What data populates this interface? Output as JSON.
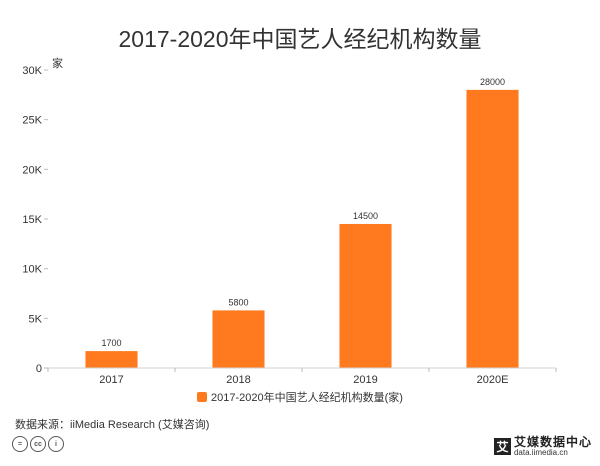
{
  "chart_data": {
    "type": "bar",
    "title": "2017-2020年中国艺人经纪机构数量",
    "ylabel": "家",
    "categories": [
      "2017",
      "2018",
      "2019",
      "2020E"
    ],
    "series": [
      {
        "name": "2017-2020年中国艺人经纪机构数量(家)",
        "values": [
          1700,
          5800,
          14500,
          28000
        ]
      }
    ],
    "data_labels": [
      "1700",
      "5800",
      "14500",
      "28000"
    ],
    "ylim": [
      0,
      30000
    ],
    "yticks": [
      0,
      5000,
      10000,
      15000,
      20000,
      25000,
      30000
    ],
    "ytick_labels": [
      "0",
      "5K",
      "10K",
      "15K",
      "20K",
      "25K",
      "30K"
    ],
    "grid": false,
    "legend_position": "bottom",
    "bar_color": "#FF7A1E"
  },
  "footer": {
    "source": "数据来源：iiMedia Research (艾媒咨询)",
    "license_icons": [
      "=",
      "cc",
      "i"
    ],
    "brand_logo": "艾",
    "brand_name": "艾媒数据中心",
    "brand_url": "data.iimedia.cn"
  }
}
